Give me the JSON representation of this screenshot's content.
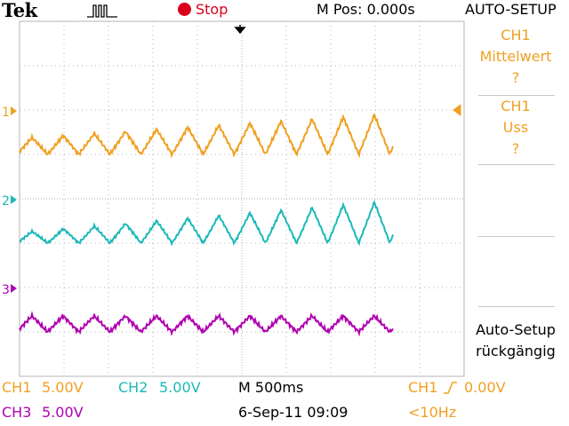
{
  "header": {
    "brand": "Tek",
    "run_state": "Stop",
    "horizontal_position": "M Pos: 0.000s",
    "menu_title": "AUTO-SETUP"
  },
  "colors": {
    "ch1": "#f0a020",
    "ch2": "#1cb8b8",
    "ch3": "#b000b0",
    "stop": "#d8001c",
    "grid": "#b4b4b4"
  },
  "channel_markers": {
    "ch1": "1",
    "ch2": "2",
    "ch3": "3"
  },
  "side_menu": {
    "items": [
      {
        "title": "CH1",
        "label": "Mittelwert",
        "value": "?"
      },
      {
        "title": "CH1",
        "label": "Uss",
        "value": "?"
      }
    ],
    "undo": {
      "line1": "Auto-Setup",
      "line2": "rückgängig"
    }
  },
  "status": {
    "ch1_label": "CH1",
    "ch1_scale": "5.00V",
    "ch2_label": "CH2",
    "ch2_scale": "5.00V",
    "ch3_label": "CH3",
    "ch3_scale": "5.00V",
    "timebase": "M 500ms",
    "datetime": "6-Sep-11 09:09",
    "trigger_source": "CH1",
    "trigger_level": "0.00V",
    "frequency": "<10Hz"
  },
  "waveforms": {
    "ch1": {
      "shape": "triangle",
      "periods": 12,
      "position_div": 1.0
    },
    "ch2": {
      "shape": "triangle",
      "periods": 12,
      "position_div": -1.0
    },
    "ch3": {
      "shape": "triangle",
      "periods": 12,
      "position_div": -3.0
    }
  }
}
